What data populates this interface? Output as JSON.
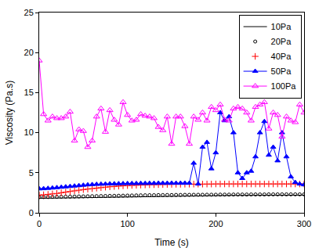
{
  "chart_data": {
    "type": "line",
    "x_label": "Time (s)",
    "y_label": "Viscosity (Pa.s)",
    "xlim": [
      0,
      300
    ],
    "xticks": [
      0,
      100,
      200,
      300
    ],
    "ylim": [
      0,
      25
    ],
    "yticks": [
      0,
      5,
      10,
      15,
      20,
      25
    ],
    "grid": false,
    "legend": "top-right",
    "x": [
      0,
      5,
      10,
      15,
      20,
      25,
      30,
      35,
      40,
      45,
      50,
      55,
      60,
      65,
      70,
      75,
      80,
      85,
      90,
      95,
      100,
      105,
      110,
      115,
      120,
      125,
      130,
      135,
      140,
      145,
      150,
      155,
      160,
      165,
      170,
      175,
      180,
      185,
      190,
      195,
      200,
      205,
      210,
      215,
      220,
      225,
      230,
      235,
      240,
      245,
      250,
      255,
      260,
      265,
      270,
      275,
      280,
      285,
      290,
      295,
      300
    ],
    "series": [
      {
        "name": "10Pa",
        "color": "#000000",
        "marker": "none",
        "line_style": "solid",
        "values": [
          1.8,
          1.81,
          1.82,
          1.83,
          1.84,
          1.85,
          1.86,
          1.87,
          1.88,
          1.89,
          1.9,
          1.91,
          1.92,
          1.93,
          1.94,
          1.95,
          1.96,
          1.97,
          1.98,
          1.99,
          2.0,
          2.01,
          2.02,
          2.03,
          2.04,
          2.05,
          2.06,
          2.07,
          2.08,
          2.09,
          2.1,
          2.1,
          2.11,
          2.11,
          2.12,
          2.12,
          2.13,
          2.13,
          2.14,
          2.14,
          2.15,
          2.15,
          2.16,
          2.16,
          2.17,
          2.17,
          2.17,
          2.18,
          2.18,
          2.18,
          2.19,
          2.19,
          2.19,
          2.2,
          2.2,
          2.2,
          2.2,
          2.2,
          2.2,
          2.2,
          2.2
        ]
      },
      {
        "name": "20Pa",
        "color": "#000000",
        "marker": "circle-open",
        "line_style": "none",
        "values": [
          1.95,
          1.96,
          1.97,
          1.98,
          1.99,
          2.0,
          2.01,
          2.02,
          2.03,
          2.04,
          2.05,
          2.06,
          2.07,
          2.08,
          2.09,
          2.1,
          2.11,
          2.12,
          2.13,
          2.14,
          2.15,
          2.16,
          2.17,
          2.18,
          2.19,
          2.2,
          2.2,
          2.21,
          2.21,
          2.22,
          2.22,
          2.23,
          2.23,
          2.24,
          2.24,
          2.25,
          2.25,
          2.25,
          2.26,
          2.26,
          2.26,
          2.27,
          2.27,
          2.27,
          2.28,
          2.28,
          2.28,
          2.28,
          2.29,
          2.29,
          2.29,
          2.29,
          2.3,
          2.3,
          2.3,
          2.3,
          2.3,
          2.3,
          2.3,
          2.3,
          2.3
        ]
      },
      {
        "name": "40Pa",
        "color": "#ff0000",
        "marker": "plus",
        "line_style": "none",
        "values": [
          2.2,
          2.25,
          2.3,
          2.36,
          2.42,
          2.5,
          2.58,
          2.66,
          2.74,
          2.82,
          2.9,
          2.96,
          3.02,
          3.08,
          3.14,
          3.2,
          3.25,
          3.29,
          3.33,
          3.37,
          3.4,
          3.42,
          3.44,
          3.46,
          3.48,
          3.5,
          3.51,
          3.52,
          3.53,
          3.54,
          3.55,
          3.56,
          3.56,
          3.57,
          3.57,
          3.58,
          3.58,
          3.58,
          3.59,
          3.59,
          3.6,
          3.6,
          3.6,
          3.6,
          3.6,
          3.6,
          3.6,
          3.6,
          3.6,
          3.6,
          3.6,
          3.6,
          3.6,
          3.6,
          3.6,
          3.6,
          3.6,
          3.6,
          3.6,
          3.6,
          3.6
        ]
      },
      {
        "name": "50Pa",
        "color": "#0000ff",
        "marker": "triangle-up",
        "line_style": "solid",
        "values": [
          3.0,
          3.02,
          3.06,
          3.1,
          3.15,
          3.2,
          3.25,
          3.3,
          3.35,
          3.4,
          3.45,
          3.5,
          3.53,
          3.56,
          3.58,
          3.6,
          3.62,
          3.63,
          3.64,
          3.65,
          3.66,
          3.67,
          3.67,
          3.68,
          3.68,
          3.69,
          3.69,
          3.7,
          3.7,
          3.7,
          3.7,
          3.7,
          3.7,
          3.7,
          3.7,
          6.2,
          3.6,
          8.2,
          8.8,
          5.5,
          7.5,
          12.5,
          11.5,
          12.0,
          10.0,
          5.0,
          4.3,
          5.0,
          5.2,
          7.0,
          10.0,
          11.4,
          7.2,
          8.2,
          6.5,
          10.0,
          7.0,
          4.5,
          3.8,
          3.6,
          3.5
        ]
      },
      {
        "name": "100Pa",
        "color": "#ff00ff",
        "marker": "triangle-up-open",
        "line_style": "solid",
        "values": [
          19.0,
          12.3,
          11.5,
          12.0,
          11.8,
          11.8,
          12.0,
          12.6,
          9.0,
          10.4,
          10.2,
          8.2,
          9.0,
          12.0,
          13.0,
          10.1,
          12.8,
          11.6,
          11.0,
          13.8,
          12.2,
          11.5,
          11.6,
          12.3,
          12.1,
          12.0,
          11.8,
          10.7,
          10.3,
          12.0,
          8.6,
          12.0,
          12.0,
          10.8,
          8.6,
          12.0,
          11.6,
          12.5,
          11.5,
          13.2,
          12.8,
          13.5,
          11.6,
          11.5,
          13.0,
          13.2,
          13.0,
          12.5,
          11.5,
          13.2,
          13.5,
          13.8,
          10.5,
          12.5,
          12.2,
          9.5,
          12.0,
          11.5,
          11.3,
          13.5,
          12.5
        ]
      }
    ]
  }
}
